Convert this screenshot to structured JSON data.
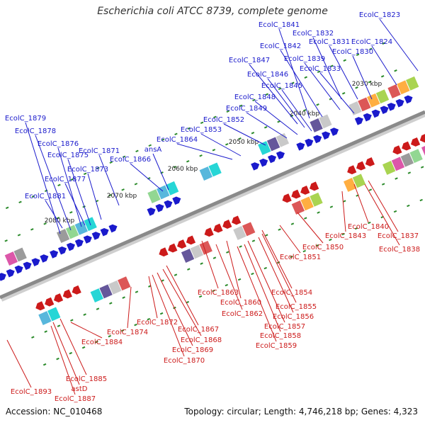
{
  "title": "Escherichia coli ATCC 8739, complete genome",
  "footer": {
    "accession": "Accession: NC_010468",
    "topology": "Topology: circular; Length: 4,746,218 bp; Genes: 4,323"
  },
  "colors": {
    "forward_strand": "#1a1acc",
    "reverse_strand": "#cc1a1a",
    "backbone": "#8a8a8a",
    "tick": "#2a8a2a"
  },
  "scale_labels": [
    "2030 kbp",
    "2040 kbp",
    "2050 kbp",
    "2060 kbp",
    "2070 kbp",
    "2080 kbp"
  ],
  "forward_labels": [
    "EcolC_1823",
    "EcolC_1841",
    "EcolC_1832",
    "EcolC_1842",
    "EcolC_1831",
    "EcolC_1824",
    "EcolC_1830",
    "EcolC_1847",
    "EcolC_1839",
    "EcolC_1846",
    "EcolC_1833",
    "EcolC_1845",
    "EcolC_1848",
    "EcolC_1849",
    "EcolC_1852",
    "EcolC_1853",
    "EcolC_1864",
    "ansA",
    "EcolC_1866",
    "EcolC_1871",
    "EcolC_1879",
    "EcolC_1878",
    "EcolC_1876",
    "EcolC_1875",
    "EcolC_1873",
    "EcolC_1877",
    "EcolC_1881"
  ],
  "reverse_labels": [
    "EcolC_1840",
    "EcolC_1843",
    "EcolC_1837",
    "EcolC_1838",
    "EcolC_1850",
    "EcolC_1851",
    "EcolC_1854",
    "EcolC_1863",
    "EcolC_1860",
    "EcolC_1855",
    "EcolC_1862",
    "EcolC_1856",
    "EcolC_1857",
    "EcolC_1858",
    "EcolC_1859",
    "EcolC_1872",
    "EcolC_1867",
    "EcolC_1874",
    "EcolC_1868",
    "EcolC_1869",
    "EcolC_1870",
    "EcolC_1884",
    "EcolC_1885",
    "astD",
    "EcolC_1893",
    "EcolC_1887"
  ]
}
